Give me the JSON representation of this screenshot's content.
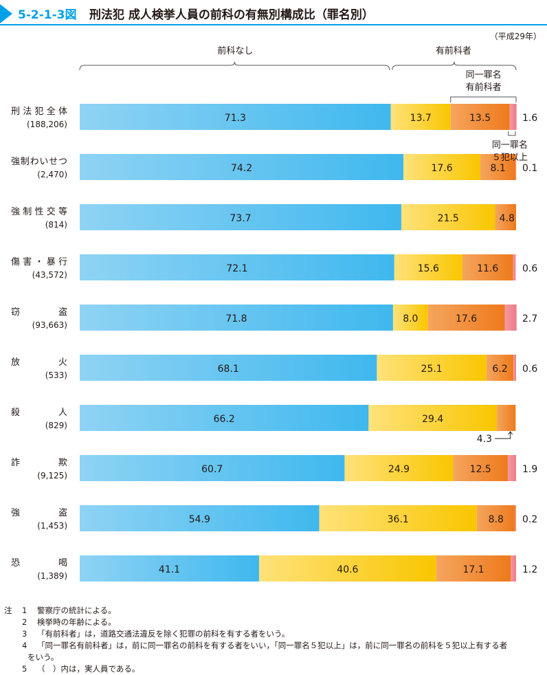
{
  "header": {
    "figure_number": "5-2-1-3図",
    "title": "刑法犯 成人検挙人員の前科の有無別構成比（罪名別）",
    "year_note": "（平成29年）"
  },
  "chart_data": {
    "type": "bar",
    "orientation": "horizontal-stacked-100",
    "categories": [
      "刑法犯全体",
      "強制わいせつ",
      "強制性交等",
      "傷害・暴行",
      "窃盗",
      "放火",
      "殺人",
      "詐欺",
      "強盗",
      "恐喝"
    ],
    "category_counts": [
      "(188,206)",
      "(2,470)",
      "(814)",
      "(43,572)",
      "(93,663)",
      "(533)",
      "(829)",
      "(9,125)",
      "(1,453)",
      "(1,389)"
    ],
    "series": [
      {
        "key": "none",
        "values": [
          71.3,
          74.2,
          73.7,
          72.1,
          71.8,
          68.1,
          66.2,
          60.7,
          54.9,
          41.1
        ]
      },
      {
        "key": "other",
        "values": [
          13.7,
          17.6,
          21.5,
          15.6,
          8.0,
          25.1,
          29.4,
          24.9,
          36.1,
          40.6
        ]
      },
      {
        "key": "same",
        "values": [
          13.5,
          8.1,
          4.8,
          11.6,
          17.6,
          6.2,
          4.3,
          12.5,
          8.8,
          17.1
        ]
      },
      {
        "key": "same5",
        "values": [
          1.6,
          0.1,
          0,
          0.6,
          2.7,
          0.6,
          0,
          1.9,
          0.2,
          1.2
        ]
      }
    ],
    "value_labels": {
      "none": [
        "71.3",
        "74.2",
        "73.7",
        "72.1",
        "71.8",
        "68.1",
        "66.2",
        "60.7",
        "54.9",
        "41.1"
      ],
      "other": [
        "13.7",
        "17.6",
        "21.5",
        "15.6",
        "8.0",
        "25.1",
        "29.4",
        "24.9",
        "36.1",
        "40.6"
      ],
      "same": [
        "13.5",
        "8.1",
        "4.8",
        "11.6",
        "17.6",
        "6.2",
        "4.3",
        "12.5",
        "8.8",
        "17.1"
      ],
      "same5": [
        "1.6",
        "0.1",
        "",
        "0.6",
        "2.7",
        "0.6",
        "",
        "1.9",
        "0.2",
        "1.2"
      ]
    },
    "group_labels": {
      "none": "前科なし",
      "prior": "有前科者",
      "same_line1": "同一罪名",
      "same_line2": "有前科者",
      "same5_line1": "同一罪名",
      "same5_line2": "５犯以上"
    },
    "xlim": [
      0,
      100
    ],
    "grid": false,
    "colors": {
      "none": [
        "#8fd3f4",
        "#3fb8ee"
      ],
      "other": [
        "#ffe27a",
        "#f9c600"
      ],
      "same": [
        "#f5a55e",
        "#ee7a1c"
      ],
      "same5": [
        "#f39aa2",
        "#ec7b88"
      ],
      "bracket": "#555555"
    }
  },
  "notes": [
    {
      "mark": "注",
      "num": "1",
      "text": "警察庁の統計による。"
    },
    {
      "mark": "",
      "num": "2",
      "text": "検挙時の年齢による。"
    },
    {
      "mark": "",
      "num": "3",
      "text": "「有前科者」は，道路交通法違反を除く犯罪の前科を有する者をいう。"
    },
    {
      "mark": "",
      "num": "4",
      "text": "「同一罪名有前科者」は，前に同一罪名の前科を有する者をいい，「同一罪名５犯以上」は，前に同一罪名の前科を５犯以上有する者"
    },
    {
      "mark": "",
      "num": "",
      "text": "をいう。"
    },
    {
      "mark": "",
      "num": "5",
      "text": "（　）内は，実人員である。"
    }
  ]
}
